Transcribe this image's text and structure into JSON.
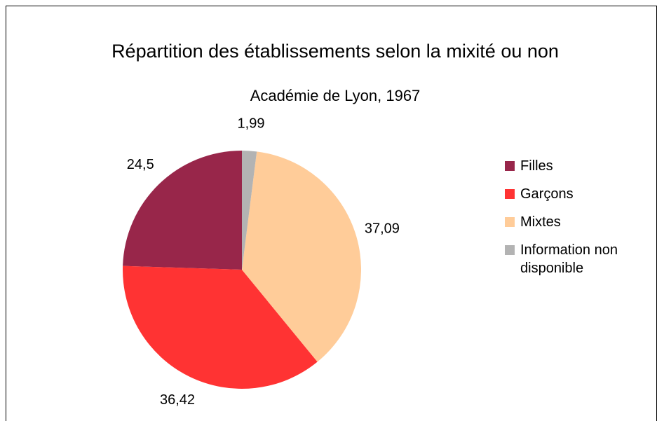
{
  "chart_data": {
    "type": "pie",
    "title": "Répartition des établissements selon la mixité ou non",
    "subtitle": "Académie de Lyon, 1967",
    "categories": [
      "Filles",
      "Garçons",
      "Mixtes",
      "Information non disponible"
    ],
    "values": [
      24.5,
      36.42,
      37.09,
      1.99
    ],
    "value_labels": [
      "24,5",
      "36,42",
      "37,09",
      "1,99"
    ],
    "colors": [
      "#98264a",
      "#ff3333",
      "#ffcc99",
      "#b3b3b3"
    ],
    "legend": "right"
  }
}
